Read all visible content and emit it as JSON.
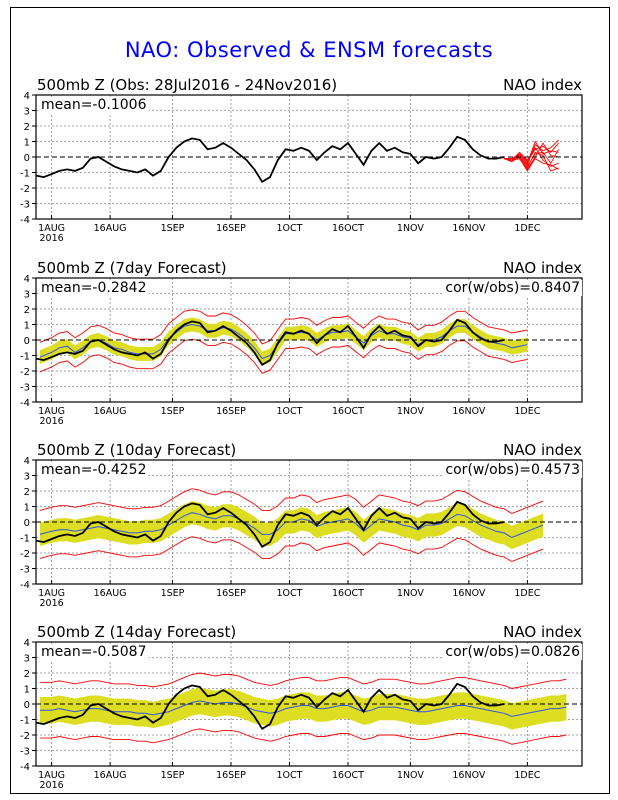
{
  "title": "NAO: Observed & ENSM forecasts",
  "panels": [
    {
      "heading_left": "500mb Z (Obs: 28Jul2016 - 24Nov2016)",
      "heading_right": "NAO index",
      "mean": "mean=-0.1006",
      "cor": ""
    },
    {
      "heading_left": "500mb Z (7day Forecast)",
      "heading_right": "NAO index",
      "mean": "mean=-0.2842",
      "cor": "cor(w/obs)=0.8407"
    },
    {
      "heading_left": "500mb Z (10day Forecast)",
      "heading_right": "NAO index",
      "mean": "mean=-0.4252",
      "cor": "cor(w/obs)=0.4573"
    },
    {
      "heading_left": "500mb Z (14day Forecast)",
      "heading_right": "NAO index",
      "mean": "mean=-0.5087",
      "cor": "cor(w/obs)=0.0826"
    }
  ],
  "chart_data": {
    "type": "line",
    "x_ticks": [
      {
        "day": 0,
        "label": "1AUG",
        "sub": "2016"
      },
      {
        "day": 15,
        "label": "16AUG",
        "sub": ""
      },
      {
        "day": 31,
        "label": "1SEP",
        "sub": ""
      },
      {
        "day": 46,
        "label": "16SEP",
        "sub": ""
      },
      {
        "day": 61,
        "label": "1OCT",
        "sub": ""
      },
      {
        "day": 76,
        "label": "16OCT",
        "sub": ""
      },
      {
        "day": 92,
        "label": "1NOV",
        "sub": ""
      },
      {
        "day": 107,
        "label": "16NOV",
        "sub": ""
      },
      {
        "day": 122,
        "label": "1DEC",
        "sub": ""
      }
    ],
    "xlim": [
      -4,
      136
    ],
    "ylim": [
      -4,
      4
    ],
    "y_ticks": [
      -4,
      -3,
      -2,
      -1,
      0,
      1,
      2,
      3,
      4
    ],
    "grid": true,
    "colors": {
      "observed": "#000000",
      "forecast": "#ff0000",
      "ensemble_mean": "#3355dd",
      "spread": "#dddd22",
      "title": "#0000ff",
      "zero_line": "#000000"
    },
    "observed": [
      [
        -4,
        -1.2
      ],
      [
        -2,
        -1.3
      ],
      [
        0,
        -1.1
      ],
      [
        2,
        -0.9
      ],
      [
        4,
        -0.8
      ],
      [
        6,
        -0.9
      ],
      [
        8,
        -0.7
      ],
      [
        10,
        -0.1
      ],
      [
        12,
        0.0
      ],
      [
        14,
        -0.3
      ],
      [
        16,
        -0.6
      ],
      [
        18,
        -0.8
      ],
      [
        20,
        -0.9
      ],
      [
        22,
        -1.0
      ],
      [
        24,
        -0.8
      ],
      [
        26,
        -1.2
      ],
      [
        28,
        -0.9
      ],
      [
        30,
        0.0
      ],
      [
        32,
        0.6
      ],
      [
        34,
        1.0
      ],
      [
        36,
        1.2
      ],
      [
        38,
        1.1
      ],
      [
        40,
        0.5
      ],
      [
        42,
        0.6
      ],
      [
        44,
        0.9
      ],
      [
        46,
        0.6
      ],
      [
        48,
        0.2
      ],
      [
        50,
        -0.2
      ],
      [
        52,
        -0.8
      ],
      [
        54,
        -1.6
      ],
      [
        56,
        -1.3
      ],
      [
        58,
        -0.2
      ],
      [
        60,
        0.5
      ],
      [
        62,
        0.4
      ],
      [
        64,
        0.6
      ],
      [
        66,
        0.4
      ],
      [
        68,
        -0.2
      ],
      [
        70,
        0.3
      ],
      [
        72,
        0.7
      ],
      [
        74,
        0.5
      ],
      [
        76,
        0.9
      ],
      [
        78,
        0.2
      ],
      [
        80,
        -0.5
      ],
      [
        82,
        0.4
      ],
      [
        84,
        0.9
      ],
      [
        86,
        0.4
      ],
      [
        88,
        0.6
      ],
      [
        90,
        0.3
      ],
      [
        92,
        0.2
      ],
      [
        94,
        -0.4
      ],
      [
        96,
        0.0
      ],
      [
        98,
        -0.1
      ],
      [
        100,
        0.0
      ],
      [
        102,
        0.6
      ],
      [
        104,
        1.3
      ],
      [
        106,
        1.1
      ],
      [
        108,
        0.5
      ],
      [
        110,
        0.1
      ],
      [
        112,
        -0.1
      ],
      [
        114,
        -0.1
      ],
      [
        116,
        0.0
      ]
    ],
    "ensemble_members": [
      [
        [
          116,
          -0.1
        ],
        [
          118,
          -0.2
        ],
        [
          120,
          0.1
        ],
        [
          122,
          -0.5
        ],
        [
          124,
          0.8
        ],
        [
          126,
          0.4
        ],
        [
          128,
          0.6
        ],
        [
          130,
          1.1
        ]
      ],
      [
        [
          116,
          -0.1
        ],
        [
          118,
          -0.3
        ],
        [
          120,
          0.2
        ],
        [
          122,
          -0.3
        ],
        [
          124,
          0.5
        ],
        [
          126,
          0.7
        ],
        [
          128,
          0.3
        ],
        [
          130,
          0.9
        ]
      ],
      [
        [
          116,
          -0.1
        ],
        [
          118,
          -0.1
        ],
        [
          120,
          0.0
        ],
        [
          122,
          -0.6
        ],
        [
          124,
          0.2
        ],
        [
          126,
          0.3
        ],
        [
          128,
          -0.4
        ],
        [
          130,
          0.5
        ]
      ],
      [
        [
          116,
          -0.1
        ],
        [
          118,
          -0.2
        ],
        [
          120,
          -0.1
        ],
        [
          122,
          -0.8
        ],
        [
          124,
          0.0
        ],
        [
          126,
          0.9
        ],
        [
          128,
          0.1
        ],
        [
          130,
          0.0
        ]
      ],
      [
        [
          116,
          -0.1
        ],
        [
          118,
          -0.2
        ],
        [
          120,
          0.3
        ],
        [
          122,
          -0.2
        ],
        [
          124,
          0.6
        ],
        [
          126,
          -0.2
        ],
        [
          128,
          -0.6
        ],
        [
          130,
          -0.4
        ]
      ],
      [
        [
          116,
          -0.1
        ],
        [
          118,
          -0.3
        ],
        [
          120,
          0.0
        ],
        [
          122,
          -0.7
        ],
        [
          124,
          0.3
        ],
        [
          126,
          0.1
        ],
        [
          128,
          -0.9
        ],
        [
          130,
          -0.7
        ]
      ],
      [
        [
          116,
          -0.1
        ],
        [
          118,
          -0.1
        ],
        [
          120,
          0.2
        ],
        [
          122,
          -0.4
        ],
        [
          124,
          1.0
        ],
        [
          126,
          0.2
        ],
        [
          128,
          0.4
        ],
        [
          130,
          0.3
        ]
      ],
      [
        [
          116,
          -0.1
        ],
        [
          118,
          -0.2
        ],
        [
          120,
          -0.1
        ],
        [
          122,
          -0.9
        ],
        [
          124,
          -0.1
        ],
        [
          126,
          -0.4
        ],
        [
          128,
          -0.5
        ],
        [
          130,
          -0.8
        ]
      ]
    ],
    "forecasts": [
      {
        "lead": "7day",
        "mean": [
          [
            -3,
            -1.1
          ],
          [
            0,
            -0.8
          ],
          [
            2,
            -0.5
          ],
          [
            4,
            -0.4
          ],
          [
            6,
            -0.8
          ],
          [
            8,
            -0.5
          ],
          [
            10,
            -0.1
          ],
          [
            12,
            0.0
          ],
          [
            14,
            -0.2
          ],
          [
            16,
            -0.5
          ],
          [
            18,
            -0.6
          ],
          [
            20,
            -0.8
          ],
          [
            22,
            -0.9
          ],
          [
            24,
            -0.9
          ],
          [
            26,
            -0.9
          ],
          [
            28,
            -0.6
          ],
          [
            30,
            0.1
          ],
          [
            32,
            0.5
          ],
          [
            34,
            0.9
          ],
          [
            36,
            1.0
          ],
          [
            38,
            0.9
          ],
          [
            40,
            0.6
          ],
          [
            42,
            0.6
          ],
          [
            44,
            0.8
          ],
          [
            46,
            0.7
          ],
          [
            48,
            0.4
          ],
          [
            50,
            0.0
          ],
          [
            52,
            -0.5
          ],
          [
            54,
            -1.2
          ],
          [
            56,
            -1.0
          ],
          [
            58,
            -0.3
          ],
          [
            60,
            0.4
          ],
          [
            62,
            0.4
          ],
          [
            64,
            0.5
          ],
          [
            66,
            0.4
          ],
          [
            68,
            0.0
          ],
          [
            70,
            0.3
          ],
          [
            72,
            0.5
          ],
          [
            74,
            0.5
          ],
          [
            76,
            0.6
          ],
          [
            78,
            0.2
          ],
          [
            80,
            -0.2
          ],
          [
            82,
            0.3
          ],
          [
            84,
            0.6
          ],
          [
            86,
            0.4
          ],
          [
            88,
            0.4
          ],
          [
            90,
            0.2
          ],
          [
            92,
            0.1
          ],
          [
            94,
            -0.3
          ],
          [
            96,
            0.0
          ],
          [
            98,
            0.0
          ],
          [
            100,
            0.2
          ],
          [
            102,
            0.6
          ],
          [
            104,
            0.9
          ],
          [
            106,
            0.9
          ],
          [
            108,
            0.5
          ],
          [
            110,
            0.2
          ],
          [
            112,
            -0.1
          ],
          [
            114,
            -0.2
          ],
          [
            116,
            -0.3
          ],
          [
            118,
            -0.5
          ],
          [
            120,
            -0.4
          ],
          [
            122,
            -0.3
          ]
        ],
        "half_width": 0.45,
        "red_offset": 0.95
      },
      {
        "lead": "10day",
        "mean": [
          [
            -3,
            -0.8
          ],
          [
            0,
            -0.6
          ],
          [
            2,
            -0.5
          ],
          [
            4,
            -0.5
          ],
          [
            6,
            -0.6
          ],
          [
            8,
            -0.5
          ],
          [
            10,
            -0.4
          ],
          [
            12,
            -0.3
          ],
          [
            14,
            -0.4
          ],
          [
            16,
            -0.5
          ],
          [
            18,
            -0.6
          ],
          [
            20,
            -0.7
          ],
          [
            22,
            -0.7
          ],
          [
            24,
            -0.6
          ],
          [
            26,
            -0.6
          ],
          [
            28,
            -0.5
          ],
          [
            30,
            -0.2
          ],
          [
            32,
            0.1
          ],
          [
            34,
            0.4
          ],
          [
            36,
            0.6
          ],
          [
            38,
            0.5
          ],
          [
            40,
            0.3
          ],
          [
            42,
            0.2
          ],
          [
            44,
            0.4
          ],
          [
            46,
            0.4
          ],
          [
            48,
            0.2
          ],
          [
            50,
            -0.1
          ],
          [
            52,
            -0.4
          ],
          [
            54,
            -0.8
          ],
          [
            56,
            -0.8
          ],
          [
            58,
            -0.5
          ],
          [
            60,
            0.0
          ],
          [
            62,
            0.0
          ],
          [
            64,
            0.2
          ],
          [
            66,
            0.1
          ],
          [
            68,
            -0.3
          ],
          [
            70,
            -0.1
          ],
          [
            72,
            0.0
          ],
          [
            74,
            0.1
          ],
          [
            76,
            0.2
          ],
          [
            78,
            -0.1
          ],
          [
            80,
            -0.6
          ],
          [
            82,
            -0.2
          ],
          [
            84,
            0.2
          ],
          [
            86,
            0.1
          ],
          [
            88,
            0.0
          ],
          [
            90,
            -0.2
          ],
          [
            92,
            -0.3
          ],
          [
            94,
            -0.5
          ],
          [
            96,
            -0.2
          ],
          [
            98,
            -0.2
          ],
          [
            100,
            -0.1
          ],
          [
            102,
            0.2
          ],
          [
            104,
            0.5
          ],
          [
            106,
            0.4
          ],
          [
            108,
            0.1
          ],
          [
            110,
            -0.2
          ],
          [
            112,
            -0.4
          ],
          [
            114,
            -0.6
          ],
          [
            116,
            -0.7
          ],
          [
            118,
            -1.0
          ],
          [
            120,
            -0.8
          ],
          [
            122,
            -0.6
          ],
          [
            124,
            -0.4
          ],
          [
            126,
            -0.2
          ]
        ],
        "half_width": 0.75,
        "red_offset": 1.55
      },
      {
        "lead": "14day",
        "mean": [
          [
            -3,
            -0.4
          ],
          [
            0,
            -0.4
          ],
          [
            2,
            -0.3
          ],
          [
            4,
            -0.4
          ],
          [
            6,
            -0.5
          ],
          [
            8,
            -0.4
          ],
          [
            10,
            -0.3
          ],
          [
            12,
            -0.3
          ],
          [
            14,
            -0.4
          ],
          [
            16,
            -0.5
          ],
          [
            18,
            -0.5
          ],
          [
            20,
            -0.5
          ],
          [
            22,
            -0.6
          ],
          [
            24,
            -0.6
          ],
          [
            26,
            -0.7
          ],
          [
            28,
            -0.6
          ],
          [
            30,
            -0.5
          ],
          [
            32,
            -0.3
          ],
          [
            34,
            -0.1
          ],
          [
            36,
            0.1
          ],
          [
            38,
            0.2
          ],
          [
            40,
            0.1
          ],
          [
            42,
            0.0
          ],
          [
            44,
            0.1
          ],
          [
            46,
            0.1
          ],
          [
            48,
            0.0
          ],
          [
            50,
            -0.2
          ],
          [
            52,
            -0.4
          ],
          [
            54,
            -0.5
          ],
          [
            56,
            -0.6
          ],
          [
            58,
            -0.5
          ],
          [
            60,
            -0.3
          ],
          [
            62,
            -0.2
          ],
          [
            64,
            -0.1
          ],
          [
            66,
            -0.1
          ],
          [
            68,
            -0.3
          ],
          [
            70,
            -0.3
          ],
          [
            72,
            -0.2
          ],
          [
            74,
            -0.1
          ],
          [
            76,
            -0.1
          ],
          [
            78,
            -0.3
          ],
          [
            80,
            -0.5
          ],
          [
            82,
            -0.4
          ],
          [
            84,
            -0.2
          ],
          [
            86,
            -0.2
          ],
          [
            88,
            -0.2
          ],
          [
            90,
            -0.3
          ],
          [
            92,
            -0.4
          ],
          [
            94,
            -0.5
          ],
          [
            96,
            -0.5
          ],
          [
            98,
            -0.4
          ],
          [
            100,
            -0.3
          ],
          [
            102,
            -0.2
          ],
          [
            104,
            -0.1
          ],
          [
            106,
            -0.1
          ],
          [
            108,
            -0.2
          ],
          [
            110,
            -0.3
          ],
          [
            112,
            -0.4
          ],
          [
            114,
            -0.5
          ],
          [
            116,
            -0.6
          ],
          [
            118,
            -0.8
          ],
          [
            120,
            -0.7
          ],
          [
            122,
            -0.6
          ],
          [
            124,
            -0.5
          ],
          [
            126,
            -0.4
          ],
          [
            128,
            -0.3
          ],
          [
            130,
            -0.3
          ],
          [
            132,
            -0.2
          ]
        ],
        "half_width": 0.85,
        "red_offset": 1.8
      }
    ]
  }
}
